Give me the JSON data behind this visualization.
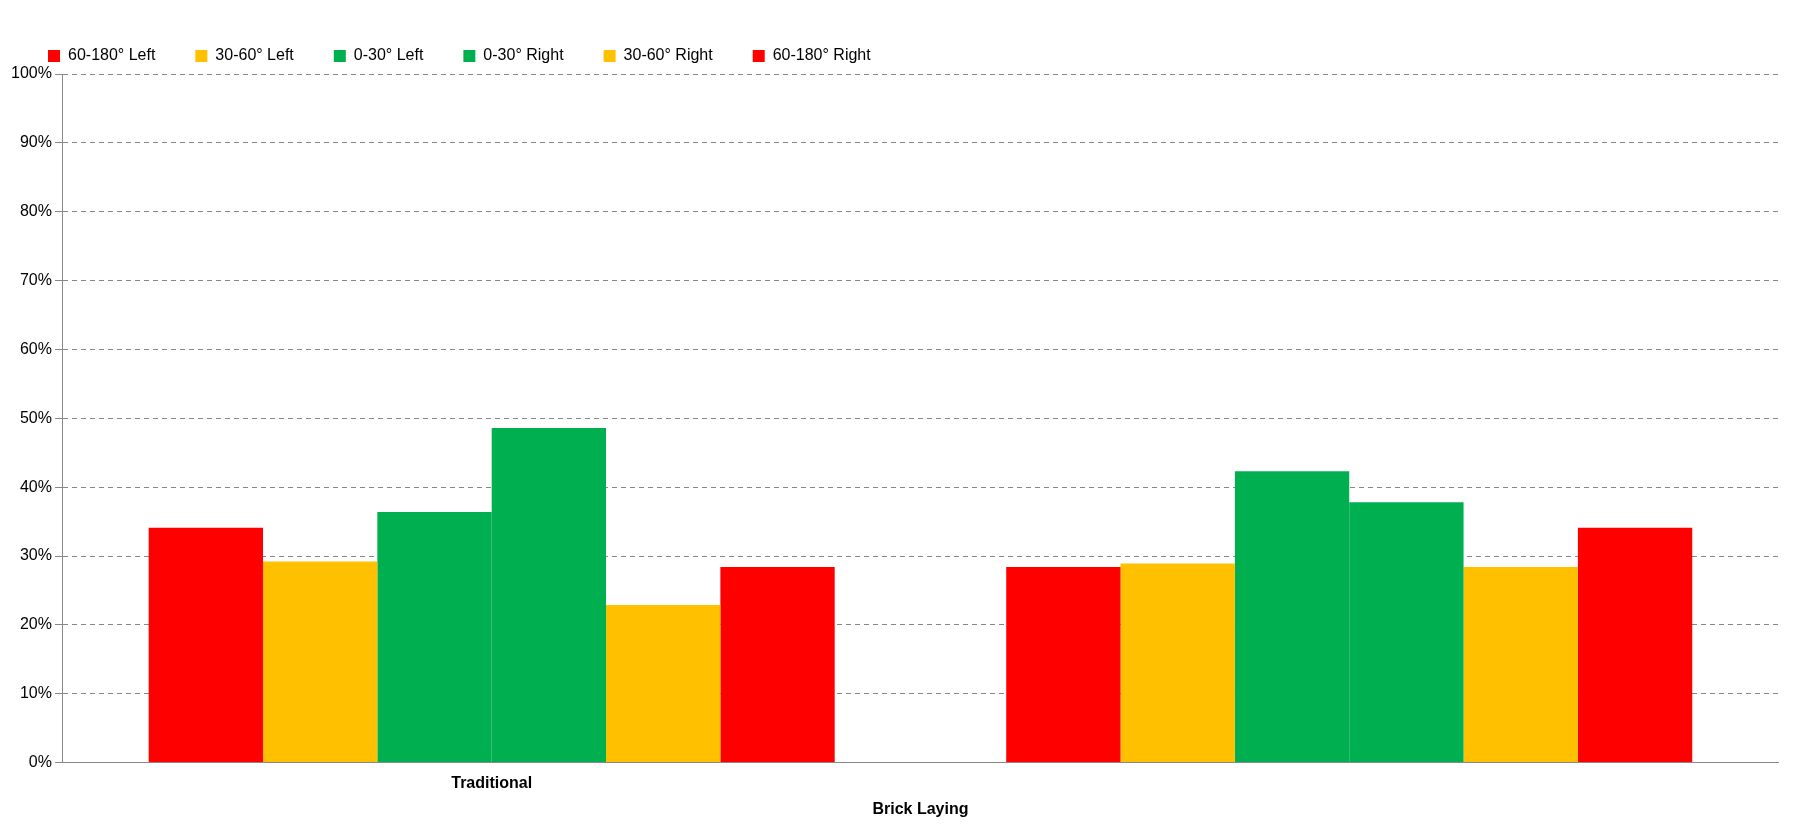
{
  "chart_data": {
    "type": "bar",
    "xlabel": "Brick Laying",
    "categories": [
      "Traditional",
      null
    ],
    "series": [
      {
        "name": "60-180° Left",
        "color": "#ff0000",
        "values": [
          34.1,
          28.4
        ]
      },
      {
        "name": "30-60° Left",
        "color": "#ffc000",
        "values": [
          29.2,
          28.9
        ]
      },
      {
        "name": "0-30° Left",
        "color": "#00b050",
        "values": [
          36.4,
          42.3
        ]
      },
      {
        "name": "0-30° Right",
        "color": "#00b050",
        "values": [
          48.6,
          37.8
        ]
      },
      {
        "name": "30-60° Right",
        "color": "#ffc000",
        "values": [
          22.9,
          28.4
        ]
      },
      {
        "name": "60-180° Right",
        "color": "#ff0000",
        "values": [
          28.4,
          34.1
        ]
      }
    ],
    "ylim": [
      0,
      100
    ],
    "yticks": [
      {
        "value": 0,
        "label": "0%"
      },
      {
        "value": 10,
        "label": "10%"
      },
      {
        "value": 20,
        "label": "20%"
      },
      {
        "value": 30,
        "label": "30%"
      },
      {
        "value": 40,
        "label": "40%"
      },
      {
        "value": 50,
        "label": "50%"
      },
      {
        "value": 60,
        "label": "60%"
      },
      {
        "value": 70,
        "label": "70%"
      },
      {
        "value": 80,
        "label": "80%"
      },
      {
        "value": 90,
        "label": "90%"
      },
      {
        "value": 100,
        "label": "100%"
      }
    ],
    "grid": "y",
    "legend": "top left"
  }
}
